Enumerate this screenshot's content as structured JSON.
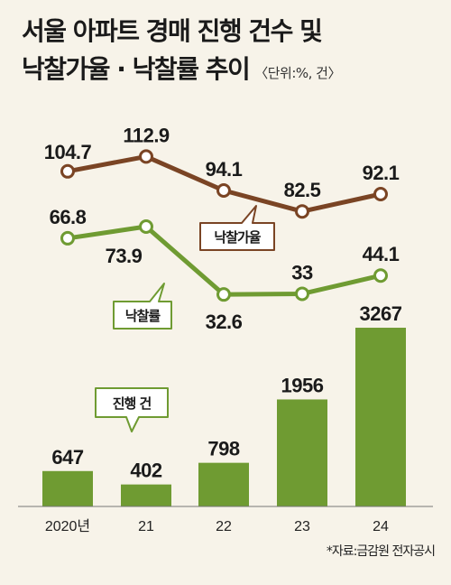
{
  "title": {
    "line1": "서울 아파트 경매 진행 건수 및",
    "line2": "낙찰가율 · 낙찰률 추이",
    "unit": "〈단위:%, 건〉"
  },
  "source": "*자료:금감원 전자공시",
  "colors": {
    "background": "#f7f3e9",
    "price_rate_line": "#7a4424",
    "sale_rate_line": "#6f9b32",
    "bar": "#6f9b32"
  },
  "chart_data": {
    "type": "bar+line",
    "categories": [
      "2020년",
      "21",
      "22",
      "23",
      "24"
    ],
    "series": [
      {
        "name": "낙찰가율",
        "type": "line",
        "values": [
          104.7,
          112.9,
          94.1,
          82.5,
          92.1
        ],
        "labels": [
          "104.7",
          "112.9",
          "94.1",
          "82.5",
          "92.1"
        ]
      },
      {
        "name": "낙찰률",
        "type": "line",
        "values": [
          66.8,
          73.9,
          32.6,
          33,
          44.1
        ],
        "labels": [
          "66.8",
          "73.9",
          "32.6",
          "33",
          "44.1"
        ]
      },
      {
        "name": "진행 건",
        "type": "bar",
        "values": [
          647,
          402,
          798,
          1956,
          3267
        ],
        "labels": [
          "647",
          "402",
          "798",
          "1956",
          "3267"
        ]
      }
    ],
    "legend": "callouts"
  }
}
